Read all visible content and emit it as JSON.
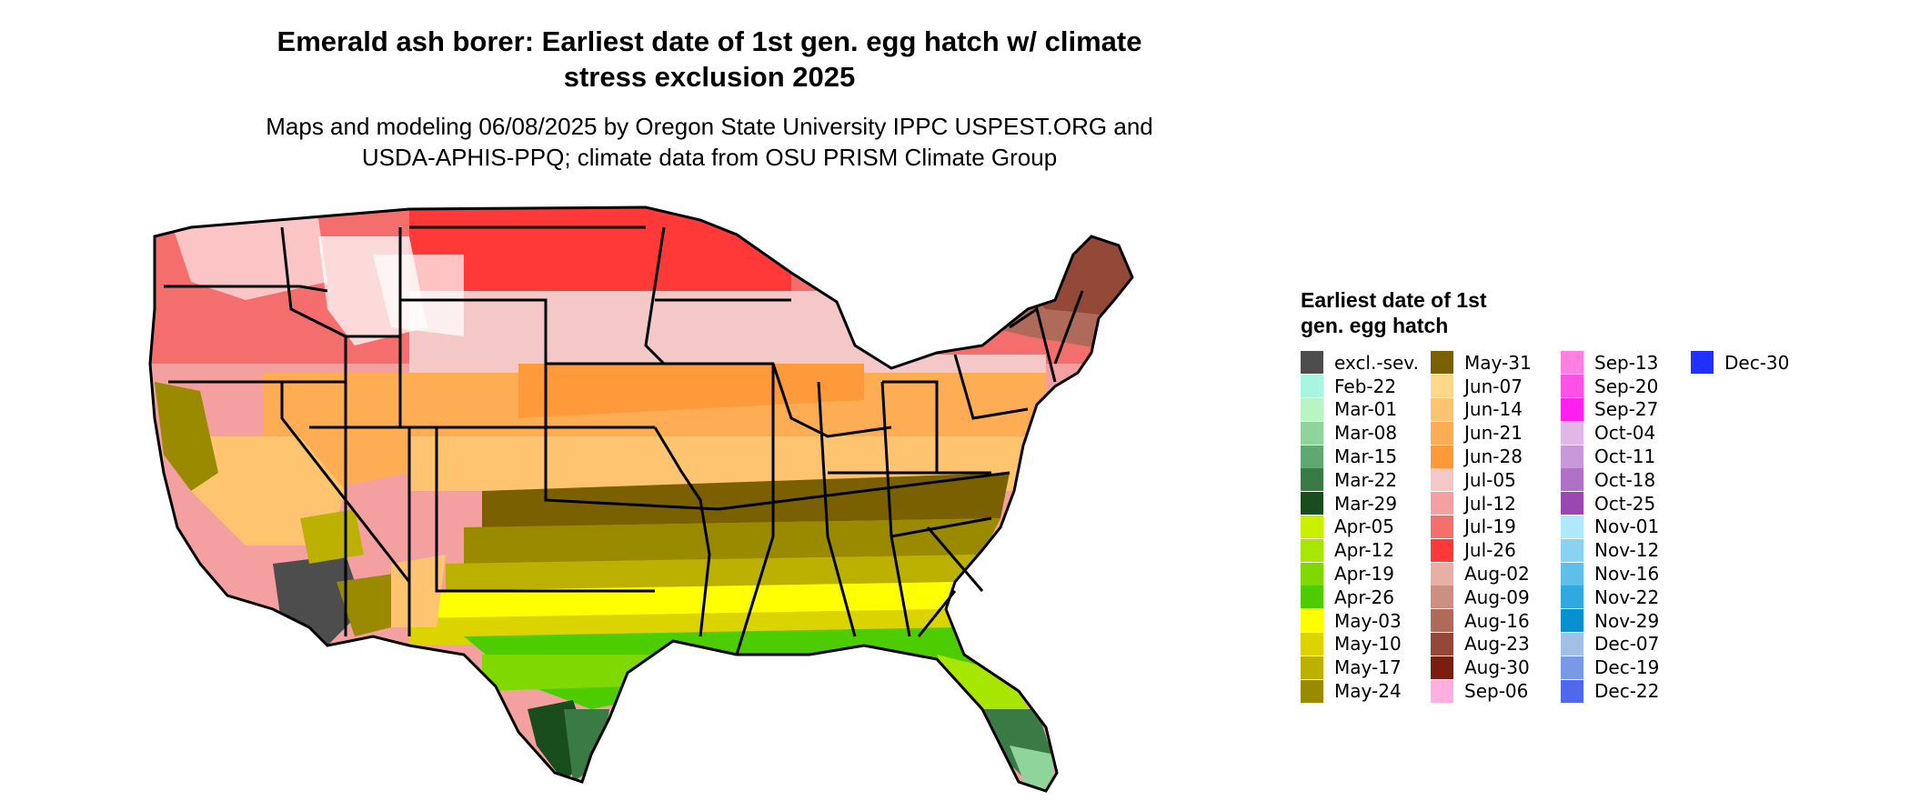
{
  "title_line1": "Emerald ash borer: Earliest date of 1st gen. egg hatch w/ climate",
  "title_line2": "stress exclusion 2025",
  "subtitle_line1": "Maps and modeling 06/08/2025 by Oregon State University IPPC USPEST.ORG and",
  "subtitle_line2": "USDA-APHIS-PPQ; climate data from OSU PRISM Climate Group",
  "legend": {
    "title": "Earliest date of 1st gen. egg hatch",
    "items": [
      {
        "label": "excl.-sev.",
        "color": "#4d4d4d"
      },
      {
        "label": "Feb-22",
        "color": "#a8f5e2"
      },
      {
        "label": "Mar-01",
        "color": "#b9f5c4"
      },
      {
        "label": "Mar-08",
        "color": "#8fd49a"
      },
      {
        "label": "Mar-15",
        "color": "#5fa872"
      },
      {
        "label": "Mar-22",
        "color": "#3a7a45"
      },
      {
        "label": "Mar-29",
        "color": "#1a4d1e"
      },
      {
        "label": "Apr-05",
        "color": "#c8f000"
      },
      {
        "label": "Apr-12",
        "color": "#a6e600"
      },
      {
        "label": "Apr-19",
        "color": "#7fd900"
      },
      {
        "label": "Apr-26",
        "color": "#4dcc00"
      },
      {
        "label": "May-03",
        "color": "#ffff00"
      },
      {
        "label": "May-10",
        "color": "#dcd400"
      },
      {
        "label": "May-17",
        "color": "#bcb000"
      },
      {
        "label": "May-24",
        "color": "#9a8a00"
      },
      {
        "label": "May-31",
        "color": "#7a6000"
      },
      {
        "label": "Jun-07",
        "color": "#ffd88a"
      },
      {
        "label": "Jun-14",
        "color": "#ffc470"
      },
      {
        "label": "Jun-21",
        "color": "#ffad55"
      },
      {
        "label": "Jun-28",
        "color": "#ff9a3a"
      },
      {
        "label": "Jul-05",
        "color": "#f5c8c8"
      },
      {
        "label": "Jul-12",
        "color": "#f5a0a0"
      },
      {
        "label": "Jul-19",
        "color": "#f56e6e"
      },
      {
        "label": "Jul-26",
        "color": "#ff3838"
      },
      {
        "label": "Aug-02",
        "color": "#e8b0a5"
      },
      {
        "label": "Aug-09",
        "color": "#cd8f80"
      },
      {
        "label": "Aug-16",
        "color": "#b06a5a"
      },
      {
        "label": "Aug-23",
        "color": "#944838"
      },
      {
        "label": "Aug-30",
        "color": "#7a1e10"
      },
      {
        "label": "Sep-06",
        "color": "#ffb0e0"
      },
      {
        "label": "Sep-13",
        "color": "#ff80e0"
      },
      {
        "label": "Sep-20",
        "color": "#ff50e8"
      },
      {
        "label": "Sep-27",
        "color": "#ff20f0"
      },
      {
        "label": "Oct-04",
        "color": "#e0b8e8"
      },
      {
        "label": "Oct-11",
        "color": "#c898d8"
      },
      {
        "label": "Oct-18",
        "color": "#b070c8"
      },
      {
        "label": "Oct-25",
        "color": "#9848b0"
      },
      {
        "label": "Nov-01",
        "color": "#b0e8ff"
      },
      {
        "label": "Nov-12",
        "color": "#88d4f0"
      },
      {
        "label": "Nov-16",
        "color": "#5ec0e8"
      },
      {
        "label": "Nov-22",
        "color": "#30a8e0"
      },
      {
        "label": "Nov-29",
        "color": "#0890d0"
      },
      {
        "label": "Dec-07",
        "color": "#a0c0e8"
      },
      {
        "label": "Dec-19",
        "color": "#7898e8"
      },
      {
        "label": "Dec-22",
        "color": "#5068f0"
      },
      {
        "label": "Dec-30",
        "color": "#2030ff"
      }
    ]
  }
}
